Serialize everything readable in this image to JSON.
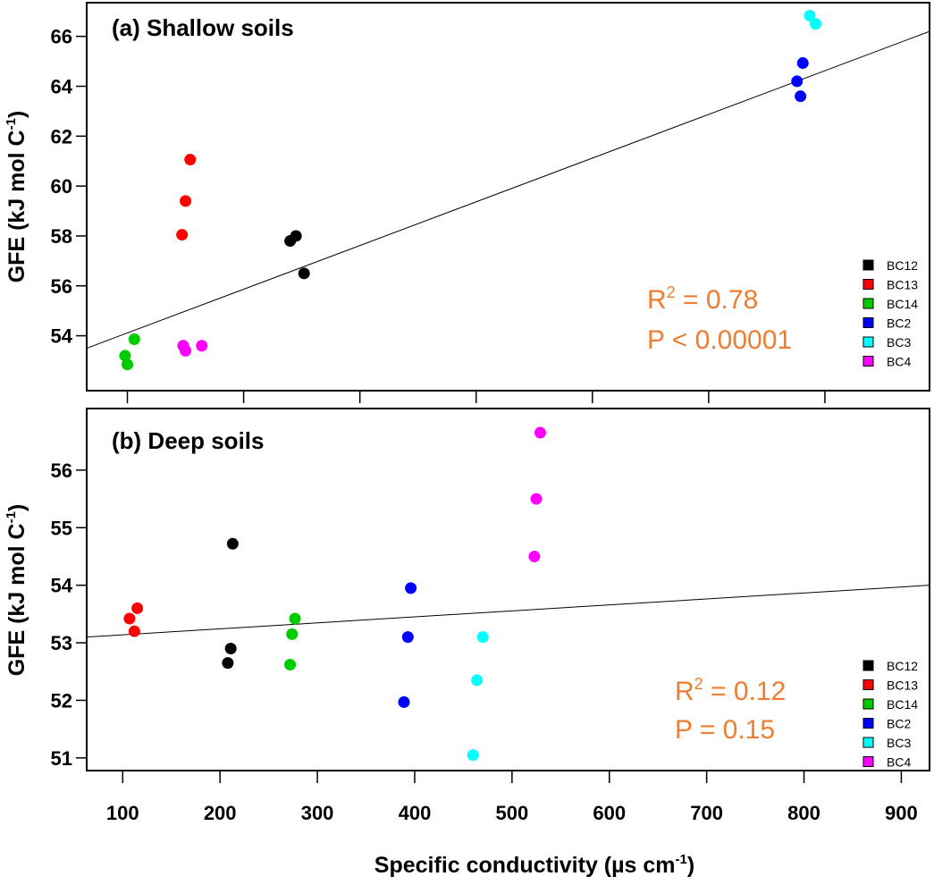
{
  "chart_data": [
    {
      "type": "scatter",
      "title": "(a) Shallow soils",
      "xlabel": "Specific conductivity (µs cm-1)",
      "ylabel": "GFE (kJ mol C-1)",
      "xlim": [
        65,
        790
      ],
      "ylim": [
        51.8,
        67.35
      ],
      "xticks": [
        100,
        200,
        300,
        400,
        500,
        600,
        700
      ],
      "xtick_labels_shown": false,
      "yticks": [
        54,
        56,
        58,
        60,
        62,
        64,
        66
      ],
      "grid": false,
      "legend_placement": "bottom-right",
      "annotation": {
        "r2_label": "R",
        "r2_sup": "2",
        "r2_value": " = 0.78",
        "p_text": "P < 0.00001"
      },
      "fit_line": {
        "x": [
          65,
          790
        ],
        "y": [
          53.5,
          66.2
        ]
      },
      "series": [
        {
          "name": "BC12",
          "color": "#000000",
          "points": [
            [
              245,
              58.0
            ],
            [
              240,
              57.8
            ],
            [
              252,
              56.5
            ]
          ]
        },
        {
          "name": "BC13",
          "color": "#FF0000",
          "points": [
            [
              154,
              61.06
            ],
            [
              150,
              59.4
            ],
            [
              147,
              58.05
            ]
          ]
        },
        {
          "name": "BC14",
          "color": "#00CC00",
          "points": [
            [
              106,
              53.86
            ],
            [
              98,
              53.2
            ],
            [
              100,
              52.85
            ]
          ]
        },
        {
          "name": "BC2",
          "color": "#0000FF",
          "points": [
            [
              681,
              64.93
            ],
            [
              676,
              64.2
            ],
            [
              679,
              63.6
            ]
          ]
        },
        {
          "name": "BC3",
          "color": "#00FFFF",
          "points": [
            [
              687,
              66.83
            ],
            [
              692,
              66.5
            ]
          ]
        },
        {
          "name": "BC4",
          "color": "#FF00FF",
          "points": [
            [
              148,
              53.6
            ],
            [
              150,
              53.4
            ],
            [
              164,
              53.6
            ]
          ]
        }
      ]
    },
    {
      "type": "scatter",
      "title": "(b) Deep soils",
      "xlabel": "Specific conductivity (µs cm-1)",
      "ylabel": "GFE (kJ mol C-1)",
      "xlim": [
        63,
        929
      ],
      "ylim": [
        50.78,
        57.07
      ],
      "xticks": [
        100,
        200,
        300,
        400,
        500,
        600,
        700,
        800,
        900
      ],
      "xtick_labels_shown": true,
      "yticks": [
        51,
        52,
        53,
        54,
        55,
        56
      ],
      "grid": false,
      "legend_placement": "bottom-right",
      "annotation": {
        "r2_label": "R",
        "r2_sup": "2",
        "r2_value": " = 0.12",
        "p_text": "P = 0.15"
      },
      "fit_line": {
        "x": [
          63,
          929
        ],
        "y": [
          53.1,
          54.0
        ]
      },
      "series": [
        {
          "name": "BC12",
          "color": "#000000",
          "points": [
            [
              213,
              54.72
            ],
            [
              211,
              52.9
            ],
            [
              208,
              52.65
            ]
          ]
        },
        {
          "name": "BC13",
          "color": "#FF0000",
          "points": [
            [
              107,
              53.42
            ],
            [
              115,
              53.6
            ],
            [
              112,
              53.2
            ]
          ]
        },
        {
          "name": "BC14",
          "color": "#00CC00",
          "points": [
            [
              277,
              53.42
            ],
            [
              274,
              53.15
            ],
            [
              272,
              52.62
            ]
          ]
        },
        {
          "name": "BC2",
          "color": "#0000FF",
          "points": [
            [
              396,
              53.95
            ],
            [
              393,
              53.1
            ],
            [
              389,
              51.97
            ]
          ]
        },
        {
          "name": "BC3",
          "color": "#00FFFF",
          "points": [
            [
              470,
              53.1
            ],
            [
              464,
              52.35
            ],
            [
              460,
              51.05
            ]
          ]
        },
        {
          "name": "BC4",
          "color": "#FF00FF",
          "points": [
            [
              529,
              56.65
            ],
            [
              525,
              55.5
            ],
            [
              523,
              54.5
            ]
          ]
        }
      ]
    }
  ],
  "axis_titles": {
    "x_main": "Specific conductivity (µs cm",
    "x_sup": "-1",
    "x_end": ")",
    "y_main": "GFE (kJ mol C",
    "y_sup": "-1",
    "y_end": ")"
  }
}
